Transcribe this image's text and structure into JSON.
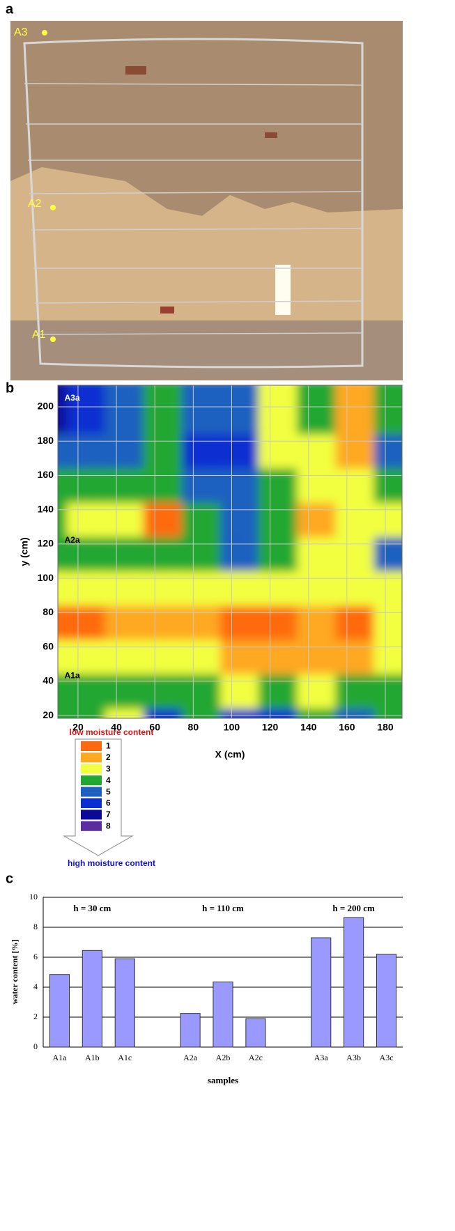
{
  "chart_data": [
    {
      "type": "photo",
      "panel": "a",
      "annotations": [
        "A3",
        "A2",
        "A1"
      ]
    },
    {
      "type": "contour",
      "panel": "b",
      "x": [
        10,
        30,
        50,
        70,
        90,
        110,
        130,
        150,
        170,
        190
      ],
      "y": [
        20,
        40,
        60,
        80,
        100,
        120,
        140,
        160,
        180,
        200
      ],
      "z": [
        [
          4,
          4,
          3,
          6,
          4,
          6,
          6,
          4,
          5,
          4
        ],
        [
          4,
          4,
          4,
          4,
          4,
          3,
          4,
          3,
          4,
          4
        ],
        [
          3,
          3,
          3,
          3,
          3,
          2,
          2,
          2,
          2,
          3
        ],
        [
          1,
          1,
          2,
          2,
          2,
          1,
          1,
          2,
          1,
          3
        ],
        [
          3,
          3,
          3,
          3,
          3,
          3,
          3,
          3,
          3,
          3
        ],
        [
          4,
          4,
          4,
          4,
          4,
          5,
          4,
          3,
          3,
          5
        ],
        [
          4,
          3,
          3,
          1,
          4,
          5,
          4,
          2,
          3,
          3
        ],
        [
          4,
          4,
          4,
          4,
          5,
          5,
          4,
          3,
          3,
          4
        ],
        [
          5,
          5,
          5,
          4,
          6,
          6,
          3,
          3,
          2,
          5
        ],
        [
          7,
          6,
          5,
          4,
          5,
          5,
          3,
          4,
          2,
          4
        ]
      ],
      "levels": [
        1,
        2,
        3,
        4,
        5,
        6,
        7,
        8
      ],
      "level_colors": [
        "#ff6a10",
        "#ffa820",
        "#f2ff40",
        "#20a830",
        "#1e60c0",
        "#0a2ed0",
        "#0a0a96",
        "#5a2ea0"
      ],
      "xlim": [
        9.5,
        188.7
      ],
      "ylim": [
        18.4,
        212.6
      ],
      "xticks": [
        20,
        40,
        60,
        80,
        100,
        120,
        140,
        160,
        180
      ],
      "yticks": [
        20,
        40,
        60,
        80,
        100,
        120,
        140,
        160,
        180,
        200
      ],
      "grid": true,
      "x_label": "X (cm)",
      "y_label": "y (cm)",
      "annotations": [
        {
          "text": "A3a",
          "x": 13,
          "y": 205,
          "color": "#ffffff"
        },
        {
          "text": "A2a",
          "x": 13,
          "y": 122,
          "color": "#000000"
        },
        {
          "text": "A1a",
          "x": 13,
          "y": 43,
          "color": "#000000"
        }
      ],
      "legend_top": "low moisture content",
      "legend_bottom": "high moisture content"
    },
    {
      "type": "bar",
      "panel": "c",
      "categories": [
        "A1a",
        "A1b",
        "A1c",
        null,
        "A2a",
        "A2b",
        "A2c",
        null,
        "A3a",
        "A3b",
        "A3c"
      ],
      "values": [
        4.85,
        6.45,
        5.9,
        null,
        2.25,
        4.35,
        1.9,
        null,
        7.3,
        8.65,
        6.2
      ],
      "color": "#9999ff",
      "ylim": [
        0,
        10
      ],
      "yticks": [
        0,
        2,
        4,
        6,
        8,
        10
      ],
      "grid": true,
      "group_labels": [
        "h = 30 cm",
        "h = 110 cm",
        "h = 200 cm"
      ],
      "x_label": "samples",
      "y_label": "water content [%]"
    }
  ]
}
